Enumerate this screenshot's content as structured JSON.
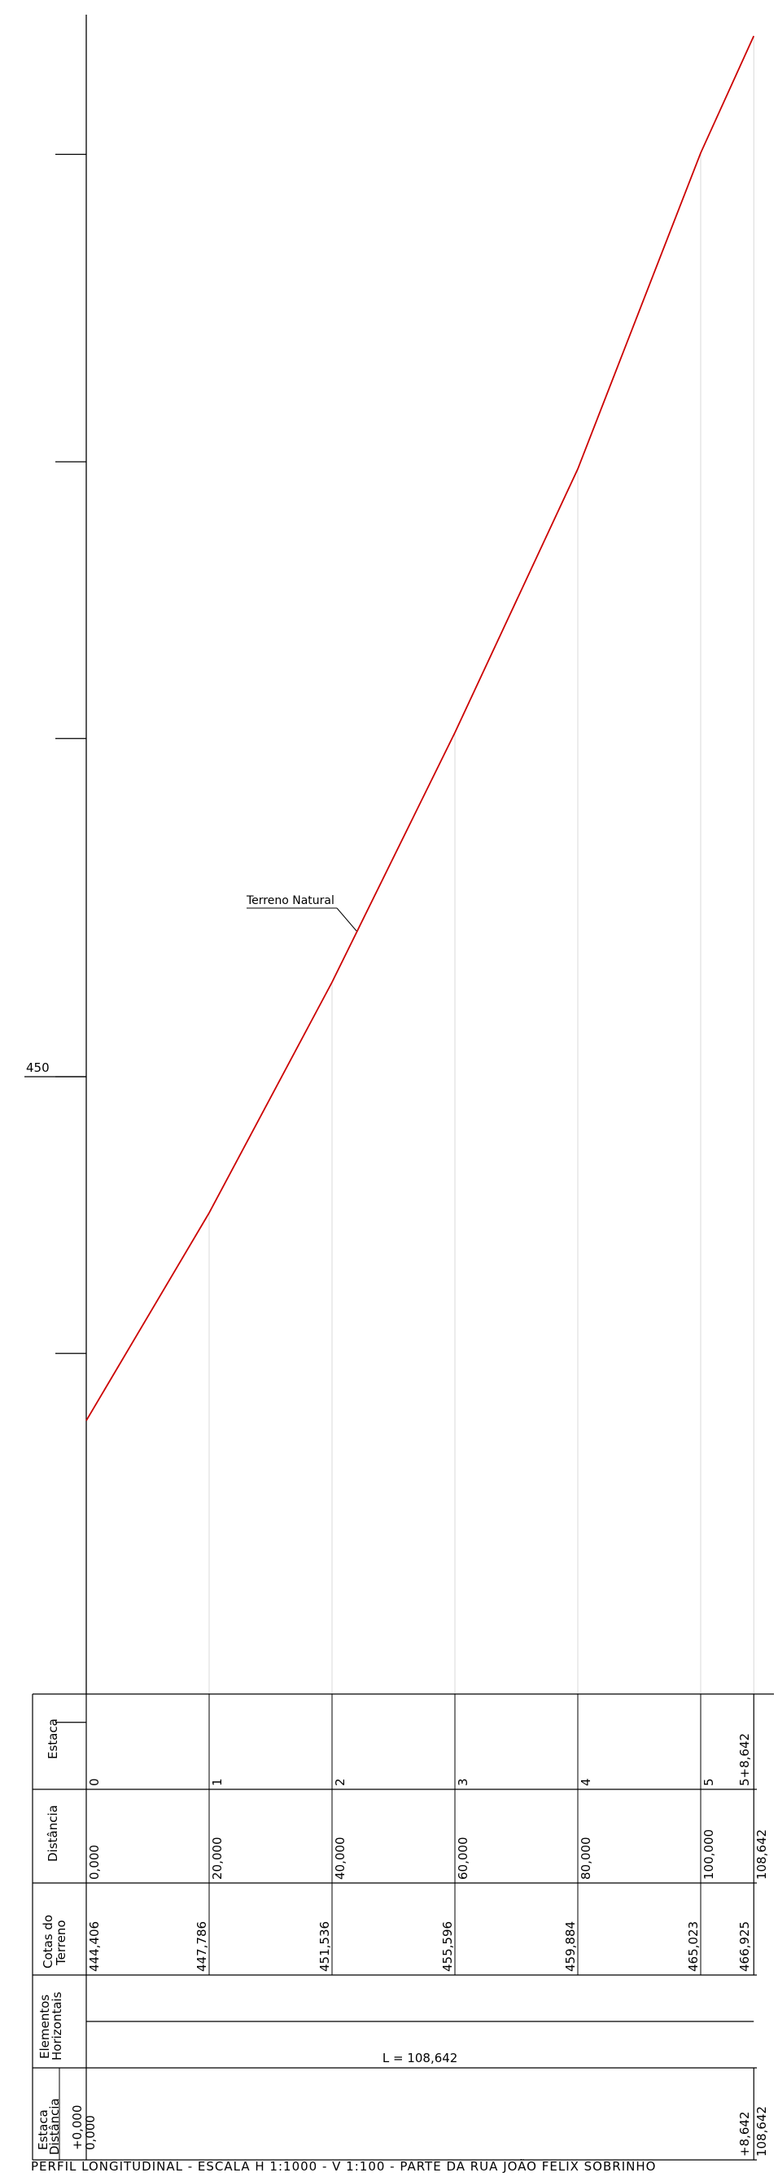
{
  "axis": {
    "major_label": "450",
    "major_value": 450,
    "tick_values": [
      439.5,
      445.5,
      450,
      455.5,
      460,
      465
    ]
  },
  "profile": {
    "label": "Terreno Natural",
    "color": "#cc0000"
  },
  "chart_data": {
    "type": "line",
    "ylabel": "",
    "series": [
      {
        "name": "Terreno Natural",
        "points": [
          {
            "distance": 0.0,
            "elevation": 444.406
          },
          {
            "distance": 20.0,
            "elevation": 447.786
          },
          {
            "distance": 40.0,
            "elevation": 451.536
          },
          {
            "distance": 60.0,
            "elevation": 455.596
          },
          {
            "distance": 80.0,
            "elevation": 459.884
          },
          {
            "distance": 100.0,
            "elevation": 465.023
          },
          {
            "distance": 108.642,
            "elevation": 466.925
          }
        ]
      }
    ]
  },
  "table": {
    "row_labels": {
      "estaca": "Estaca",
      "distancia": "Distância",
      "cotas_line1": "Cotas do",
      "cotas_line2": "Terreno",
      "elementos_line1": "Elementos",
      "elementos_line2": "Horizontais",
      "bottom_line1": "Estaca",
      "bottom_line2": "Distância"
    },
    "stations": [
      {
        "estaca": "0",
        "distancia": "0,000",
        "cota": "444,406"
      },
      {
        "estaca": "1",
        "distancia": "20,000",
        "cota": "447,786"
      },
      {
        "estaca": "2",
        "distancia": "40,000",
        "cota": "451,536"
      },
      {
        "estaca": "3",
        "distancia": "60,000",
        "cota": "455,596"
      },
      {
        "estaca": "4",
        "distancia": "80,000",
        "cota": "459,884"
      },
      {
        "estaca": "5",
        "distancia": "100,000",
        "cota": "465,023"
      },
      {
        "estaca": "5+8,642",
        "distancia": "108,642",
        "cota": "466,925"
      }
    ],
    "horizontal_length": "L = 108,642",
    "bottom_start_estaca": "+0,000",
    "bottom_start_distancia": "0,000",
    "bottom_end_estaca": "+8,642",
    "bottom_end_distancia": "108,642"
  },
  "footer": {
    "title": "PERFIL LONGITUDINAL   -   ESCALA H 1:1000  -  V 1:100   -   PARTE DA RUA JOÃO FELIX SOBRINHO"
  }
}
